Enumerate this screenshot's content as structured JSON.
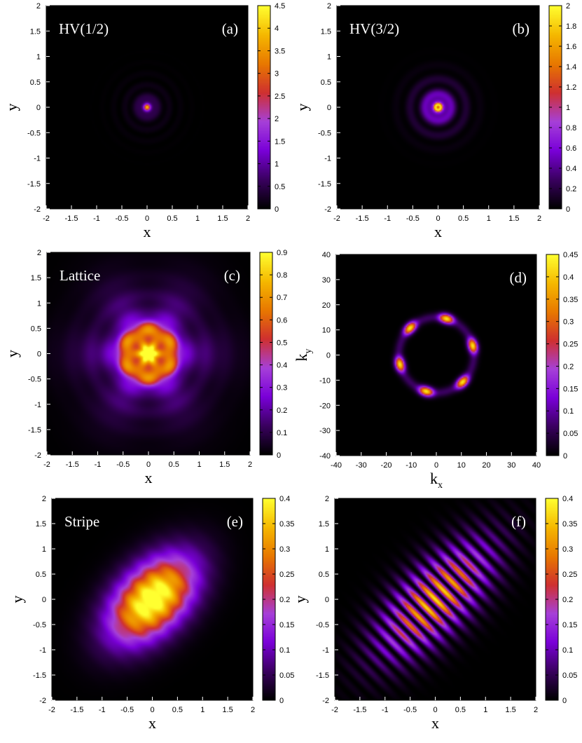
{
  "chart_data": [
    {
      "id": "a",
      "type": "heatmap",
      "title": "HV(1/2)",
      "panel_label": "(a)",
      "xlabel": "x",
      "ylabel": "y",
      "xlim": [
        -2,
        2
      ],
      "ylim": [
        -2,
        2
      ],
      "xticks": [
        "-2",
        "-1.5",
        "-1",
        "-0.5",
        "0",
        "0.5",
        "1",
        "1.5",
        "2"
      ],
      "yticks": [
        "-2",
        "-1.5",
        "-1",
        "-0.5",
        "0",
        "0.5",
        "1",
        "1.5",
        "2"
      ],
      "colorbar": {
        "min": 0,
        "max": 4.5,
        "ticks": [
          "0",
          "0.5",
          "1",
          "1.5",
          "2",
          "2.5",
          "3",
          "3.5",
          "4",
          "4.5"
        ]
      },
      "pattern": "peak"
    },
    {
      "id": "b",
      "type": "heatmap",
      "title": "HV(3/2)",
      "panel_label": "(b)",
      "xlabel": "x",
      "ylabel": "y",
      "xlim": [
        -2,
        2
      ],
      "ylim": [
        -2,
        2
      ],
      "xticks": [
        "-2",
        "-1.5",
        "-1",
        "-0.5",
        "0",
        "0.5",
        "1",
        "1.5",
        "2"
      ],
      "yticks": [
        "-2",
        "-1.5",
        "-1",
        "-0.5",
        "0",
        "0.5",
        "1",
        "1.5",
        "2"
      ],
      "colorbar": {
        "min": 0,
        "max": 2,
        "ticks": [
          "0",
          "0.2",
          "0.4",
          "0.6",
          "0.8",
          "1",
          "1.2",
          "1.4",
          "1.6",
          "1.8",
          "2"
        ]
      },
      "pattern": "ring"
    },
    {
      "id": "c",
      "type": "heatmap",
      "title": "Lattice",
      "panel_label": "(c)",
      "xlabel": "x",
      "ylabel": "y",
      "xlim": [
        -2,
        2
      ],
      "ylim": [
        -2,
        2
      ],
      "xticks": [
        "-2",
        "-1.5",
        "-1",
        "-0.5",
        "0",
        "0.5",
        "1",
        "1.5",
        "2"
      ],
      "yticks": [
        "-2",
        "-1.5",
        "-1",
        "-0.5",
        "0",
        "0.5",
        "1",
        "1.5",
        "2"
      ],
      "colorbar": {
        "min": 0,
        "max": 0.9,
        "ticks": [
          "0",
          "0.1",
          "0.2",
          "0.3",
          "0.4",
          "0.5",
          "0.6",
          "0.7",
          "0.8",
          "0.9"
        ]
      },
      "pattern": "lattice"
    },
    {
      "id": "d",
      "type": "heatmap",
      "title": "",
      "panel_label": "(d)",
      "xlabel": "k",
      "xlabel_sub": "x",
      "ylabel": "k",
      "ylabel_sub": "y",
      "xlim": [
        -40,
        40
      ],
      "ylim": [
        -40,
        40
      ],
      "xticks": [
        "-40",
        "-30",
        "-20",
        "-10",
        "0",
        "10",
        "20",
        "30",
        "40"
      ],
      "yticks": [
        "-40",
        "-30",
        "-20",
        "-10",
        "0",
        "10",
        "20",
        "30",
        "40"
      ],
      "colorbar": {
        "min": 0,
        "max": 0.45,
        "ticks": [
          "0",
          "0.05",
          "0.1",
          "0.15",
          "0.2",
          "0.25",
          "0.3",
          "0.35",
          "0.4",
          "0.45"
        ]
      },
      "pattern": "kspace"
    },
    {
      "id": "e",
      "type": "heatmap",
      "title": "Stripe",
      "panel_label": "(e)",
      "xlabel": "x",
      "ylabel": "y",
      "xlim": [
        -2,
        2
      ],
      "ylim": [
        -2,
        2
      ],
      "xticks": [
        "-2",
        "-1.5",
        "-1",
        "-0.5",
        "0",
        "0.5",
        "1",
        "1.5",
        "2"
      ],
      "yticks": [
        "-2",
        "-1.5",
        "-1",
        "-0.5",
        "0",
        "0.5",
        "1",
        "1.5",
        "2"
      ],
      "colorbar": {
        "min": 0,
        "max": 0.4,
        "ticks": [
          "0",
          "0.05",
          "0.1",
          "0.15",
          "0.2",
          "0.25",
          "0.3",
          "0.35",
          "0.4"
        ]
      },
      "pattern": "blob"
    },
    {
      "id": "f",
      "type": "heatmap",
      "title": "",
      "panel_label": "(f)",
      "xlabel": "x",
      "ylabel": "y",
      "xlim": [
        -2,
        2
      ],
      "ylim": [
        -2,
        2
      ],
      "xticks": [
        "-2",
        "-1.5",
        "-1",
        "-0.5",
        "0",
        "0.5",
        "1",
        "1.5",
        "2"
      ],
      "yticks": [
        "-2",
        "-1.5",
        "-1",
        "-0.5",
        "0",
        "0.5",
        "1",
        "1.5",
        "2"
      ],
      "colorbar": {
        "min": 0,
        "max": 0.4,
        "ticks": [
          "0",
          "0.05",
          "0.1",
          "0.15",
          "0.2",
          "0.25",
          "0.3",
          "0.35",
          "0.4"
        ]
      },
      "pattern": "stripes"
    }
  ],
  "colormap": [
    "#000000",
    "#3a0060",
    "#7a00d8",
    "#a640d8",
    "#cf3030",
    "#e87800",
    "#f5b800",
    "#ffff30"
  ]
}
